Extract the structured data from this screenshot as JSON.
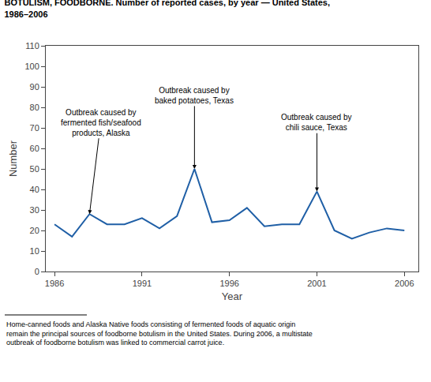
{
  "chart_data": {
    "type": "line",
    "title": "BOTULISM, FOODBORNE. Number of reported cases, by year — United States,\n1986–2006",
    "x": [
      1986,
      1987,
      1988,
      1989,
      1990,
      1991,
      1992,
      1993,
      1994,
      1995,
      1996,
      1997,
      1998,
      1999,
      2000,
      2001,
      2002,
      2003,
      2004,
      2005,
      2006
    ],
    "values": [
      23,
      17,
      28,
      23,
      23,
      26,
      21,
      27,
      50,
      24,
      25,
      31,
      22,
      23,
      23,
      39,
      20,
      16,
      19,
      21,
      20
    ],
    "color": "#1f5fa6",
    "xlabel": "Year",
    "ylabel": "Number",
    "xlim": [
      1985.5,
      2006.8
    ],
    "xticks": [
      1986,
      1991,
      1996,
      2001,
      2006
    ],
    "ylim": [
      0,
      110
    ],
    "yticks": [
      0,
      10,
      20,
      30,
      40,
      50,
      60,
      70,
      80,
      90,
      100,
      110
    ],
    "grid": false,
    "annotations": [
      {
        "text": "Outbreak caused by\nfermented fish/seafood\nproducts, Alaska",
        "x": 1988,
        "y": 28
      },
      {
        "text": "Outbreak caused by\nbaked potatoes, Texas",
        "x": 1994,
        "y": 50
      },
      {
        "text": "Outbreak caused by\nchili sauce, Texas",
        "x": 2001,
        "y": 39
      }
    ],
    "footnote": "Home-canned foods and Alaska Native foods consisting of fermented foods of aquatic origin\nremain the principal sources of foodborne botulism in the United States. During 2006, a multistate\noutbreak of foodborne botulism was linked to commercial carrot juice."
  }
}
